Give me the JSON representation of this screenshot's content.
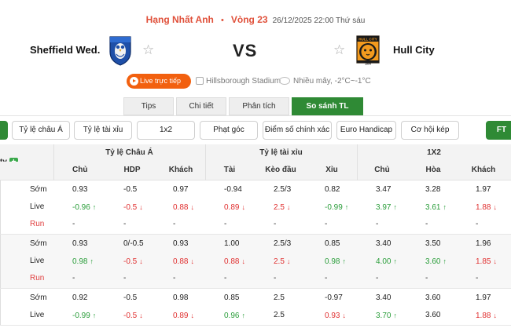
{
  "header": {
    "league": "Hạng Nhất Anh",
    "separator": "•",
    "round": "Vòng 23",
    "datetime": "26/12/2025 22:00 Thứ sáu"
  },
  "match": {
    "home": "Sheffield Wed.",
    "away": "Hull City",
    "vs": "VS",
    "live_button": "Live trực tiếp",
    "stadium": "Hillsborough Stadium",
    "weather": "Nhiều mây, -2°C~-1°C",
    "star": "☆",
    "home_crest_icon": "owl-crest-icon",
    "away_crest_icon": "tiger-crest-icon",
    "away_crest_text_top": "HULL CITY",
    "away_crest_text_bottom": "1904"
  },
  "tabs": [
    {
      "label": "Tips",
      "active": false
    },
    {
      "label": "Chi tiết",
      "active": false
    },
    {
      "label": "Phân tích",
      "active": false
    },
    {
      "label": "So sánh TL",
      "active": true
    }
  ],
  "filters": [
    {
      "label": "",
      "active": true
    },
    {
      "label": "Tỷ lệ châu Á",
      "active": false
    },
    {
      "label": "Tỷ lệ tài xỉu",
      "active": false
    },
    {
      "label": "1x2",
      "active": false
    },
    {
      "label": "Phạt góc",
      "active": false
    },
    {
      "label": "Điểm số chính xác",
      "active": false
    },
    {
      "label": "Euro Handicap",
      "active": false
    },
    {
      "label": "Cơ hội kép",
      "active": false
    },
    {
      "label": "FT",
      "active": true
    }
  ],
  "table": {
    "first_col_header": "ty",
    "plus_label": "+",
    "groups": [
      "Tỷ lệ Châu Á",
      "Tỷ lệ tài xỉu",
      "1X2"
    ],
    "columns": [
      "Chủ",
      "HDP",
      "Khách",
      "Tài",
      "Kèo đầu",
      "Xỉu",
      "Chủ",
      "Hòa",
      "Khách"
    ],
    "blocks": [
      {
        "rows": [
          {
            "label": "Sớm",
            "cells": [
              [
                "0.93",
                ""
              ],
              [
                "-0.5",
                ""
              ],
              [
                "0.97",
                ""
              ],
              [
                "-0.94",
                ""
              ],
              [
                "2.5/3",
                ""
              ],
              [
                "0.82",
                ""
              ],
              [
                "3.47",
                ""
              ],
              [
                "3.28",
                ""
              ],
              [
                "1.97",
                ""
              ]
            ]
          },
          {
            "label": "Live",
            "cells": [
              [
                "-0.96",
                "up"
              ],
              [
                "-0.5",
                "down"
              ],
              [
                "0.88",
                "down"
              ],
              [
                "0.89",
                "down"
              ],
              [
                "2.5",
                "down"
              ],
              [
                "-0.99",
                "up"
              ],
              [
                "3.97",
                "up"
              ],
              [
                "3.61",
                "up"
              ],
              [
                "1.88",
                "down"
              ]
            ]
          },
          {
            "label": "Run",
            "cells": [
              [
                "-",
                ""
              ],
              [
                "-",
                ""
              ],
              [
                "-",
                ""
              ],
              [
                "-",
                ""
              ],
              [
                "-",
                ""
              ],
              [
                "-",
                ""
              ],
              [
                "-",
                ""
              ],
              [
                "-",
                ""
              ],
              [
                "-",
                ""
              ]
            ]
          }
        ]
      },
      {
        "rows": [
          {
            "label": "Sớm",
            "cells": [
              [
                "0.93",
                ""
              ],
              [
                "0/-0.5",
                ""
              ],
              [
                "0.93",
                ""
              ],
              [
                "1.00",
                ""
              ],
              [
                "2.5/3",
                ""
              ],
              [
                "0.85",
                ""
              ],
              [
                "3.40",
                ""
              ],
              [
                "3.50",
                ""
              ],
              [
                "1.96",
                ""
              ]
            ]
          },
          {
            "label": "Live",
            "cells": [
              [
                "0.98",
                "up"
              ],
              [
                "-0.5",
                "down"
              ],
              [
                "0.88",
                "down"
              ],
              [
                "0.88",
                "down"
              ],
              [
                "2.5",
                "down"
              ],
              [
                "0.98",
                "up"
              ],
              [
                "4.00",
                "up"
              ],
              [
                "3.60",
                "up"
              ],
              [
                "1.85",
                "down"
              ]
            ]
          },
          {
            "label": "Run",
            "cells": [
              [
                "-",
                ""
              ],
              [
                "-",
                ""
              ],
              [
                "-",
                ""
              ],
              [
                "-",
                ""
              ],
              [
                "-",
                ""
              ],
              [
                "-",
                ""
              ],
              [
                "-",
                ""
              ],
              [
                "-",
                ""
              ],
              [
                "-",
                ""
              ]
            ]
          }
        ]
      },
      {
        "rows": [
          {
            "label": "Sớm",
            "cells": [
              [
                "0.92",
                ""
              ],
              [
                "-0.5",
                ""
              ],
              [
                "0.98",
                ""
              ],
              [
                "0.85",
                ""
              ],
              [
                "2.5",
                ""
              ],
              [
                "-0.97",
                ""
              ],
              [
                "3.40",
                ""
              ],
              [
                "3.60",
                ""
              ],
              [
                "1.97",
                ""
              ]
            ]
          },
          {
            "label": "Live",
            "cells": [
              [
                "-0.99",
                "up"
              ],
              [
                "-0.5",
                "down"
              ],
              [
                "0.89",
                "down"
              ],
              [
                "0.96",
                "up"
              ],
              [
                "2.5",
                ""
              ],
              [
                "0.93",
                "down"
              ],
              [
                "3.70",
                "up"
              ],
              [
                "3.60",
                ""
              ],
              [
                "1.88",
                "down"
              ]
            ]
          }
        ]
      }
    ]
  },
  "colors": {
    "accent_red": "#e0503a",
    "tab_green": "#2f8a35",
    "live_orange": "#f2600f",
    "up": "#2a9d3a",
    "down": "#e03030"
  }
}
